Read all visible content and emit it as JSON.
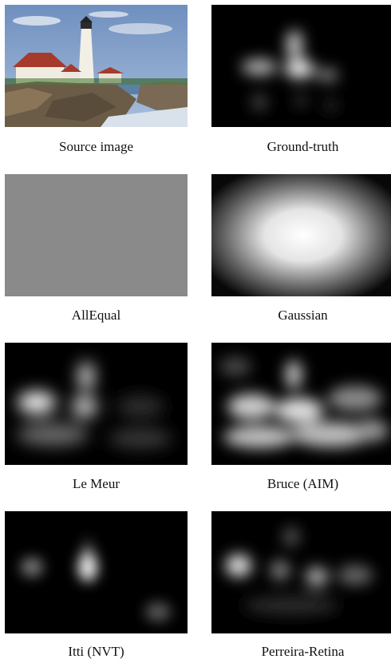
{
  "figure": {
    "panels": [
      {
        "id": "source",
        "caption": "Source image"
      },
      {
        "id": "ground-truth",
        "caption": "Ground-truth"
      },
      {
        "id": "allequal",
        "caption": "AllEqual"
      },
      {
        "id": "gaussian",
        "caption": "Gaussian"
      },
      {
        "id": "le-meur",
        "caption": "Le Meur"
      },
      {
        "id": "bruce",
        "caption": "Bruce (AIM)"
      },
      {
        "id": "itti",
        "caption": "Itti (NVT)"
      },
      {
        "id": "perreira",
        "caption": "Perreira-Retina"
      }
    ]
  }
}
